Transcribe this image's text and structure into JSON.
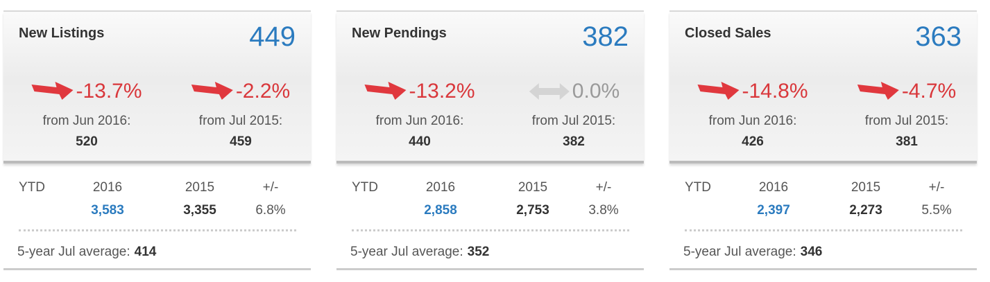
{
  "cards": [
    {
      "title": "New Listings",
      "value": "449",
      "changes": [
        {
          "pct": "-13.7%",
          "from": "from Jun 2016:",
          "base": "520"
        },
        {
          "pct": "-2.2%",
          "from": "from Jul 2015:",
          "base": "459"
        }
      ],
      "ytd": {
        "label": "YTD",
        "year1": "2016",
        "year2": "2015",
        "diff_label": "+/-",
        "value1": "3,583",
        "value2": "3,355",
        "diff": "6.8%"
      },
      "average": {
        "label": "5-year Jul average:",
        "value": "414"
      }
    },
    {
      "title": "New Pendings",
      "value": "382",
      "changes": [
        {
          "pct": "-13.2%",
          "from": "from Jun 2016:",
          "base": "440"
        },
        {
          "pct": "0.0%",
          "from": "from Jul 2015:",
          "base": "382"
        }
      ],
      "ytd": {
        "label": "YTD",
        "year1": "2016",
        "year2": "2015",
        "diff_label": "+/-",
        "value1": "2,858",
        "value2": "2,753",
        "diff": "3.8%"
      },
      "average": {
        "label": "5-year Jul average:",
        "value": "352"
      }
    },
    {
      "title": "Closed Sales",
      "value": "363",
      "changes": [
        {
          "pct": "-14.8%",
          "from": "from Jun 2016:",
          "base": "426"
        },
        {
          "pct": "-4.7%",
          "from": "from Jul 2015:",
          "base": "381"
        }
      ],
      "ytd": {
        "label": "YTD",
        "year1": "2016",
        "year2": "2015",
        "diff_label": "+/-",
        "value1": "2,397",
        "value2": "2,273",
        "diff": "5.5%"
      },
      "average": {
        "label": "5-year Jul average:",
        "value": "346"
      }
    }
  ]
}
